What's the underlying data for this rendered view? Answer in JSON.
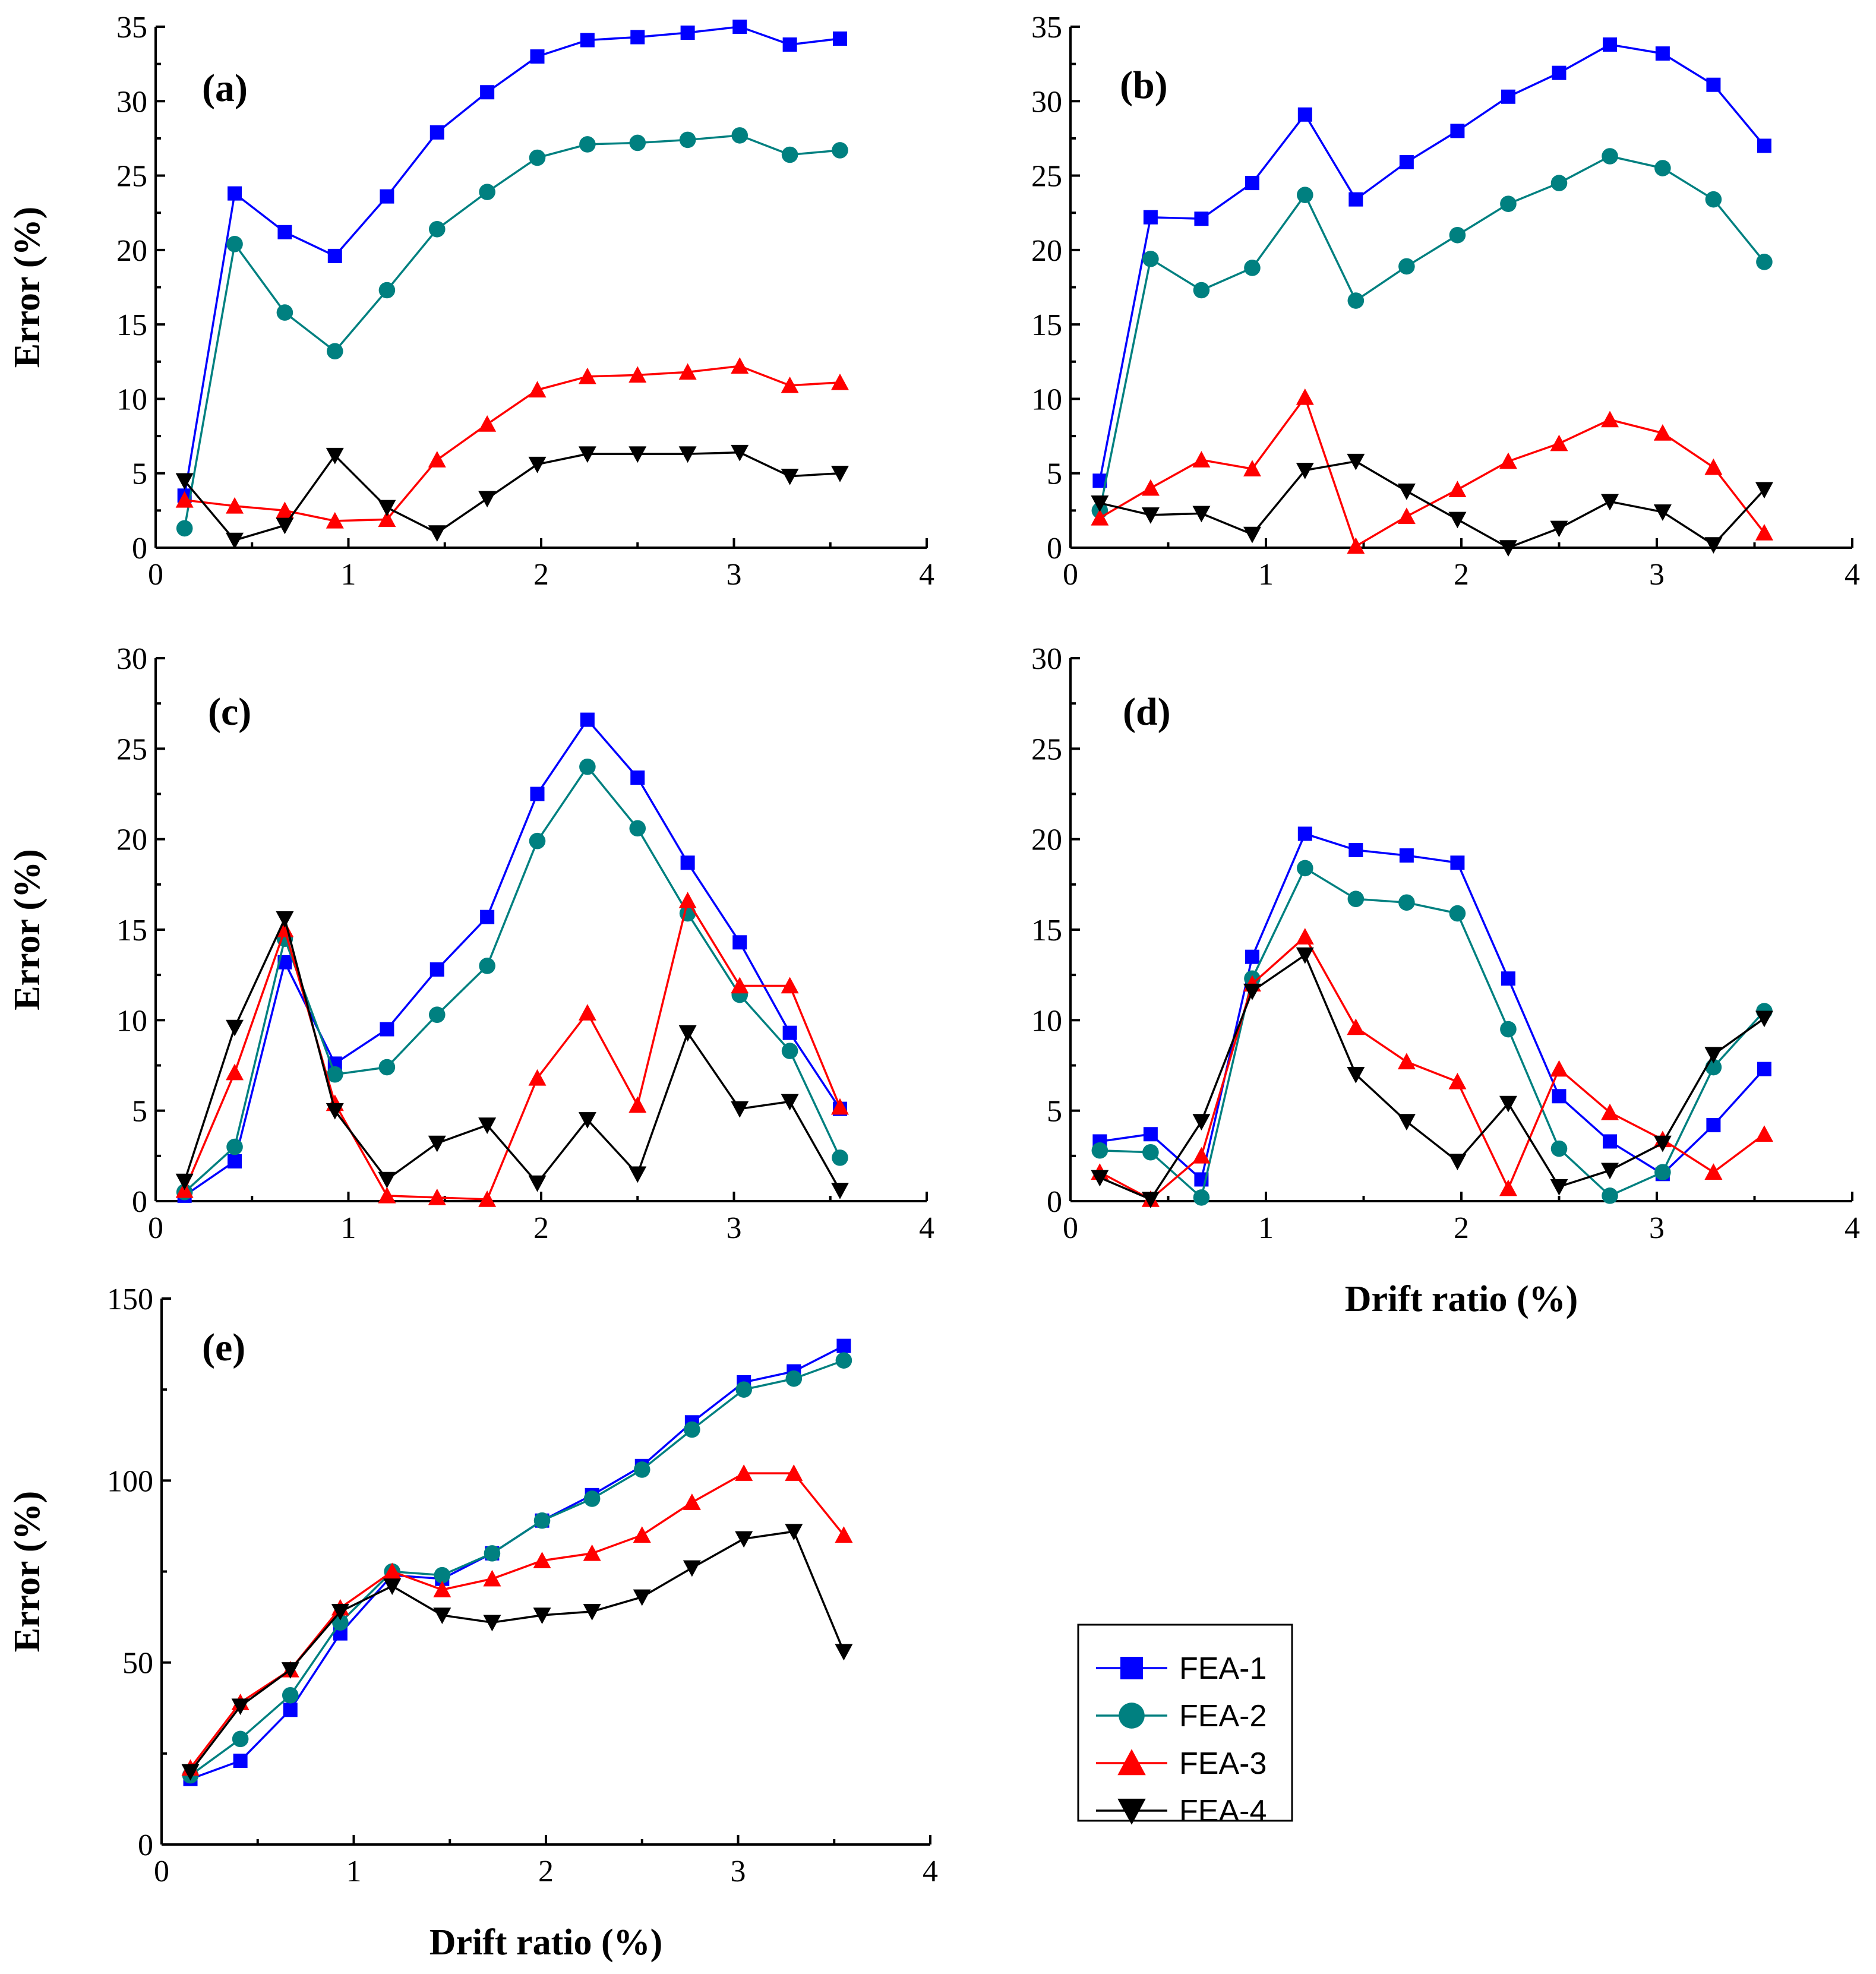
{
  "series_styles": [
    {
      "name": "FEA-1",
      "color": "#0000ff",
      "marker": "square"
    },
    {
      "name": "FEA-2",
      "color": "#008080",
      "marker": "circle"
    },
    {
      "name": "FEA-3",
      "color": "#ff0000",
      "marker": "triangle-up"
    },
    {
      "name": "FEA-4",
      "color": "#000000",
      "marker": "triangle-down"
    }
  ],
  "legend": {
    "entries": [
      "FEA-1",
      "FEA-2",
      "FEA-3",
      "FEA-4"
    ]
  },
  "chart_data": [
    {
      "type": "line",
      "title": "(a)",
      "xlabel": "",
      "ylabel": "Error (%)",
      "xlim": [
        0,
        4
      ],
      "ylim": [
        0,
        35
      ],
      "xticks": [
        0,
        1,
        2,
        3,
        4
      ],
      "yticks": [
        0,
        5,
        10,
        15,
        20,
        25,
        30,
        35
      ],
      "x": [
        0.15,
        0.41,
        0.67,
        0.93,
        1.2,
        1.46,
        1.72,
        1.98,
        2.24,
        2.5,
        2.76,
        3.03,
        3.29,
        3.55
      ],
      "series": [
        {
          "name": "FEA-1",
          "values": [
            3.5,
            23.8,
            21.2,
            19.6,
            23.6,
            27.9,
            30.6,
            33.0,
            34.1,
            34.3,
            34.6,
            35.0,
            33.8,
            34.2
          ]
        },
        {
          "name": "FEA-2",
          "values": [
            1.3,
            20.4,
            15.8,
            13.2,
            17.3,
            21.4,
            23.9,
            26.2,
            27.1,
            27.2,
            27.4,
            27.7,
            26.4,
            26.7
          ]
        },
        {
          "name": "FEA-3",
          "values": [
            3.2,
            2.8,
            2.5,
            1.8,
            1.9,
            5.9,
            8.3,
            10.6,
            11.5,
            11.6,
            11.8,
            12.2,
            10.9,
            11.1
          ]
        },
        {
          "name": "FEA-4",
          "values": [
            4.5,
            0.5,
            1.5,
            6.2,
            2.7,
            1.0,
            3.3,
            5.6,
            6.3,
            6.3,
            6.3,
            6.4,
            4.8,
            5.0
          ]
        }
      ]
    },
    {
      "type": "line",
      "title": "(b)",
      "xlabel": "",
      "ylabel": "",
      "xlim": [
        0,
        4
      ],
      "ylim": [
        0,
        35
      ],
      "xticks": [
        0,
        1,
        2,
        3,
        4
      ],
      "yticks": [
        0,
        5,
        10,
        15,
        20,
        25,
        30,
        35
      ],
      "x": [
        0.15,
        0.41,
        0.67,
        0.93,
        1.2,
        1.46,
        1.72,
        1.98,
        2.24,
        2.5,
        2.76,
        3.03,
        3.29,
        3.55
      ],
      "series": [
        {
          "name": "FEA-1",
          "values": [
            4.5,
            22.2,
            22.1,
            24.5,
            29.1,
            23.4,
            25.9,
            28.0,
            30.3,
            31.9,
            33.8,
            33.2,
            31.1,
            27.0
          ]
        },
        {
          "name": "FEA-2",
          "values": [
            2.5,
            19.4,
            17.3,
            18.8,
            23.7,
            16.6,
            18.9,
            21.0,
            23.1,
            24.5,
            26.3,
            25.5,
            23.4,
            19.2
          ]
        },
        {
          "name": "FEA-3",
          "values": [
            2.0,
            4.0,
            5.9,
            5.3,
            10.1,
            0.1,
            2.1,
            3.9,
            5.8,
            7.0,
            8.6,
            7.7,
            5.4,
            1.0
          ]
        },
        {
          "name": "FEA-4",
          "values": [
            3.0,
            2.2,
            2.3,
            0.9,
            5.2,
            5.8,
            3.8,
            1.9,
            0.0,
            1.3,
            3.1,
            2.4,
            0.2,
            3.9
          ]
        }
      ]
    },
    {
      "type": "line",
      "title": "(c)",
      "xlabel": "",
      "ylabel": "Error (%)",
      "xlim": [
        0,
        4
      ],
      "ylim": [
        0,
        30
      ],
      "xticks": [
        0,
        1,
        2,
        3,
        4
      ],
      "yticks": [
        0,
        5,
        10,
        15,
        20,
        25,
        30
      ],
      "x": [
        0.15,
        0.41,
        0.67,
        0.93,
        1.2,
        1.46,
        1.72,
        1.98,
        2.24,
        2.5,
        2.76,
        3.03,
        3.29,
        3.55
      ],
      "series": [
        {
          "name": "FEA-1",
          "values": [
            0.3,
            2.2,
            13.2,
            7.6,
            9.5,
            12.8,
            15.7,
            22.5,
            26.6,
            23.4,
            18.7,
            14.3,
            9.3,
            5.1
          ]
        },
        {
          "name": "FEA-2",
          "values": [
            0.5,
            3.0,
            14.5,
            7.0,
            7.4,
            10.3,
            13.0,
            19.9,
            24.0,
            20.6,
            15.9,
            11.4,
            8.3,
            2.4
          ]
        },
        {
          "name": "FEA-3",
          "values": [
            0.6,
            7.1,
            15.0,
            5.4,
            0.3,
            0.2,
            0.1,
            6.8,
            10.4,
            5.3,
            16.6,
            11.9,
            11.9,
            5.2
          ]
        },
        {
          "name": "FEA-4",
          "values": [
            1.1,
            9.6,
            15.6,
            5.0,
            1.2,
            3.2,
            4.2,
            1.0,
            4.5,
            1.5,
            9.3,
            5.1,
            5.5,
            0.6
          ]
        }
      ]
    },
    {
      "type": "line",
      "title": "(d)",
      "xlabel": "Drift ratio (%)",
      "ylabel": "",
      "xlim": [
        0,
        4
      ],
      "ylim": [
        0,
        30
      ],
      "xticks": [
        0,
        1,
        2,
        3,
        4
      ],
      "yticks": [
        0,
        5,
        10,
        15,
        20,
        25,
        30
      ],
      "x": [
        0.15,
        0.41,
        0.67,
        0.93,
        1.2,
        1.46,
        1.72,
        1.98,
        2.24,
        2.5,
        2.76,
        3.03,
        3.29,
        3.55
      ],
      "series": [
        {
          "name": "FEA-1",
          "values": [
            3.3,
            3.7,
            1.2,
            13.5,
            20.3,
            19.4,
            19.1,
            18.7,
            12.3,
            5.8,
            3.3,
            1.5,
            4.2,
            7.3
          ]
        },
        {
          "name": "FEA-2",
          "values": [
            2.8,
            2.7,
            0.2,
            12.3,
            18.4,
            16.7,
            16.5,
            15.9,
            9.5,
            2.9,
            0.3,
            1.6,
            7.4,
            10.5
          ]
        },
        {
          "name": "FEA-3",
          "values": [
            1.6,
            0.1,
            2.5,
            12.0,
            14.6,
            9.6,
            7.7,
            6.6,
            0.7,
            7.3,
            4.9,
            3.4,
            1.6,
            3.7
          ]
        },
        {
          "name": "FEA-4",
          "values": [
            1.3,
            0.1,
            4.4,
            11.6,
            13.6,
            7.0,
            4.4,
            2.2,
            5.4,
            0.8,
            1.7,
            3.2,
            8.1,
            10.1
          ]
        }
      ]
    },
    {
      "type": "line",
      "title": "(e)",
      "xlabel": "Drift ratio (%)",
      "ylabel": "Error (%)",
      "xlim": [
        0,
        4
      ],
      "ylim": [
        0,
        150
      ],
      "xticks": [
        0,
        1,
        2,
        3,
        4
      ],
      "yticks": [
        0,
        50,
        100,
        150
      ],
      "x": [
        0.15,
        0.41,
        0.67,
        0.93,
        1.2,
        1.46,
        1.72,
        1.98,
        2.24,
        2.5,
        2.76,
        3.03,
        3.29,
        3.55
      ],
      "series": [
        {
          "name": "FEA-1",
          "values": [
            18,
            23,
            37,
            58,
            74,
            73,
            80,
            89,
            96,
            104,
            116,
            127,
            130,
            137
          ]
        },
        {
          "name": "FEA-2",
          "values": [
            19,
            29,
            41,
            61,
            75,
            74,
            80,
            89,
            95,
            103,
            114,
            125,
            128,
            133
          ]
        },
        {
          "name": "FEA-3",
          "values": [
            21,
            39,
            48,
            65,
            75,
            70,
            73,
            78,
            80,
            85,
            94,
            102,
            102,
            85
          ]
        },
        {
          "name": "FEA-4",
          "values": [
            20,
            38,
            48,
            64,
            71,
            63,
            61,
            63,
            64,
            68,
            76,
            84,
            86,
            53
          ]
        }
      ]
    }
  ]
}
